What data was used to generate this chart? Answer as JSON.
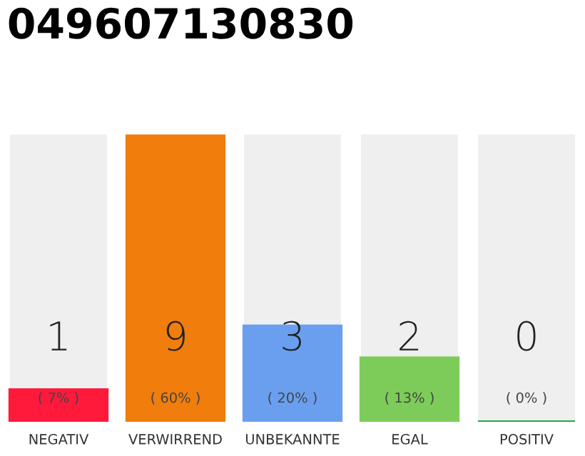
{
  "chart_data": {
    "type": "bar",
    "title": "049607130830",
    "categories": [
      "NEGATIV",
      "VERWIRREND",
      "UNBEKANNTE",
      "EGAL",
      "POSITIV"
    ],
    "values": [
      1,
      9,
      3,
      2,
      0
    ],
    "colors": [
      "#ff1a3c",
      "#f07d0c",
      "#6a9ff0",
      "#7dcc5a",
      "#22aa44"
    ],
    "data_labels": true,
    "annotations": [
      "( 7% )",
      "( 60% )",
      "( 20% )",
      "( 13% )",
      "( 0% )"
    ],
    "grid": false,
    "legend": false
  }
}
